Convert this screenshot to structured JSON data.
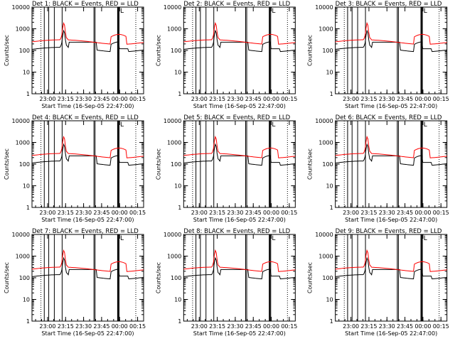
{
  "colors": {
    "events": "#000000",
    "lld": "#ff0000",
    "axis": "#000000",
    "background": "#ffffff"
  },
  "chart_data": [
    {
      "type": "line",
      "title": "Det 1: BLACK = Events, RED = LLD",
      "xlabel": "Start Time (16-Sep-05 22:47:00)",
      "ylabel": "Counts/sec",
      "yscale": "log",
      "ylim": [
        1,
        10000
      ],
      "x_ticks": [
        "23:00",
        "23:15",
        "23:30",
        "23:45",
        "00:00",
        "00:15"
      ],
      "y_ticks": [
        "1",
        "10",
        "100",
        "1000",
        "10000"
      ],
      "legend_mark": "L",
      "series": [
        {
          "name": "Events",
          "color": "#000000"
        },
        {
          "name": "LLD",
          "color": "#ff0000"
        }
      ]
    },
    {
      "type": "line",
      "title": "Det 2: BLACK = Events, RED = LLD",
      "xlabel": "Start Time (16-Sep-05 22:47:00)",
      "ylabel": "Counts/sec",
      "yscale": "log",
      "ylim": [
        1,
        10000
      ],
      "x_ticks": [
        "23:00",
        "23:15",
        "23:30",
        "23:45",
        "00:00",
        "00:15"
      ],
      "y_ticks": [
        "1",
        "10",
        "100",
        "1000",
        "10000"
      ],
      "legend_mark": "L",
      "series": [
        {
          "name": "Events",
          "color": "#000000"
        },
        {
          "name": "LLD",
          "color": "#ff0000"
        }
      ]
    },
    {
      "type": "line",
      "title": "Det 3: BLACK = Events, RED = LLD",
      "xlabel": "Start Time (16-Sep-05 22:47:00)",
      "ylabel": "Counts/sec",
      "yscale": "log",
      "ylim": [
        1,
        10000
      ],
      "x_ticks": [
        "23:00",
        "23:15",
        "23:30",
        "23:45",
        "00:00",
        "00:15"
      ],
      "y_ticks": [
        "1",
        "10",
        "100",
        "1000",
        "10000"
      ],
      "legend_mark": "L",
      "series": [
        {
          "name": "Events",
          "color": "#000000"
        },
        {
          "name": "LLD",
          "color": "#ff0000"
        }
      ]
    },
    {
      "type": "line",
      "title": "Det 4: BLACK = Events, RED = LLD",
      "xlabel": "Start Time (16-Sep-05 22:47:00)",
      "ylabel": "Counts/sec",
      "yscale": "log",
      "ylim": [
        1,
        10000
      ],
      "x_ticks": [
        "23:00",
        "23:15",
        "23:30",
        "23:45",
        "00:00",
        "00:15"
      ],
      "y_ticks": [
        "1",
        "10",
        "100",
        "1000",
        "10000"
      ],
      "legend_mark": "L",
      "series": [
        {
          "name": "Events",
          "color": "#000000"
        },
        {
          "name": "LLD",
          "color": "#ff0000"
        }
      ]
    },
    {
      "type": "line",
      "title": "Det 5: BLACK = Events, RED = LLD",
      "xlabel": "Start Time (16-Sep-05 22:47:00)",
      "ylabel": "Counts/sec",
      "yscale": "log",
      "ylim": [
        1,
        10000
      ],
      "x_ticks": [
        "23:00",
        "23:15",
        "23:30",
        "23:45",
        "00:00",
        "00:15"
      ],
      "y_ticks": [
        "1",
        "10",
        "100",
        "1000",
        "10000"
      ],
      "legend_mark": "L",
      "series": [
        {
          "name": "Events",
          "color": "#000000"
        },
        {
          "name": "LLD",
          "color": "#ff0000"
        }
      ]
    },
    {
      "type": "line",
      "title": "Det 6: BLACK = Events, RED = LLD",
      "xlabel": "Start Time (16-Sep-05 22:47:00)",
      "ylabel": "Counts/sec",
      "yscale": "log",
      "ylim": [
        1,
        10000
      ],
      "x_ticks": [
        "23:00",
        "23:15",
        "23:30",
        "23:45",
        "00:00",
        "00:15"
      ],
      "y_ticks": [
        "1",
        "10",
        "100",
        "1000",
        "10000"
      ],
      "legend_mark": "L",
      "series": [
        {
          "name": "Events",
          "color": "#000000"
        },
        {
          "name": "LLD",
          "color": "#ff0000"
        }
      ]
    },
    {
      "type": "line",
      "title": "Det 7: BLACK = Events, RED = LLD",
      "xlabel": "Start Time (16-Sep-05 22:47:00)",
      "ylabel": "Counts/sec",
      "yscale": "log",
      "ylim": [
        1,
        10000
      ],
      "x_ticks": [
        "23:00",
        "23:15",
        "23:30",
        "23:45",
        "00:00",
        "00:15"
      ],
      "y_ticks": [
        "1",
        "10",
        "100",
        "1000",
        "10000"
      ],
      "legend_mark": "L",
      "series": [
        {
          "name": "Events",
          "color": "#000000"
        },
        {
          "name": "LLD",
          "color": "#ff0000"
        }
      ]
    },
    {
      "type": "line",
      "title": "Det 8: BLACK = Events, RED = LLD",
      "xlabel": "Start Time (16-Sep-05 22:47:00)",
      "ylabel": "Counts/sec",
      "yscale": "log",
      "ylim": [
        1,
        10000
      ],
      "x_ticks": [
        "23:00",
        "23:15",
        "23:30",
        "23:45",
        "00:00",
        "00:15"
      ],
      "y_ticks": [
        "1",
        "10",
        "100",
        "1000",
        "10000"
      ],
      "legend_mark": "L",
      "series": [
        {
          "name": "Events",
          "color": "#000000"
        },
        {
          "name": "LLD",
          "color": "#ff0000"
        }
      ]
    },
    {
      "type": "line",
      "title": "Det 9: BLACK = Events, RED = LLD",
      "xlabel": "Start Time (16-Sep-05 22:47:00)",
      "ylabel": "Counts/sec",
      "yscale": "log",
      "ylim": [
        1,
        10000
      ],
      "x_ticks": [
        "23:00",
        "23:15",
        "23:30",
        "23:45",
        "00:00",
        "00:15"
      ],
      "y_ticks": [
        "1",
        "10",
        "100",
        "1000",
        "10000"
      ],
      "legend_mark": "L",
      "series": [
        {
          "name": "Events",
          "color": "#000000"
        },
        {
          "name": "LLD",
          "color": "#ff0000"
        }
      ]
    }
  ]
}
